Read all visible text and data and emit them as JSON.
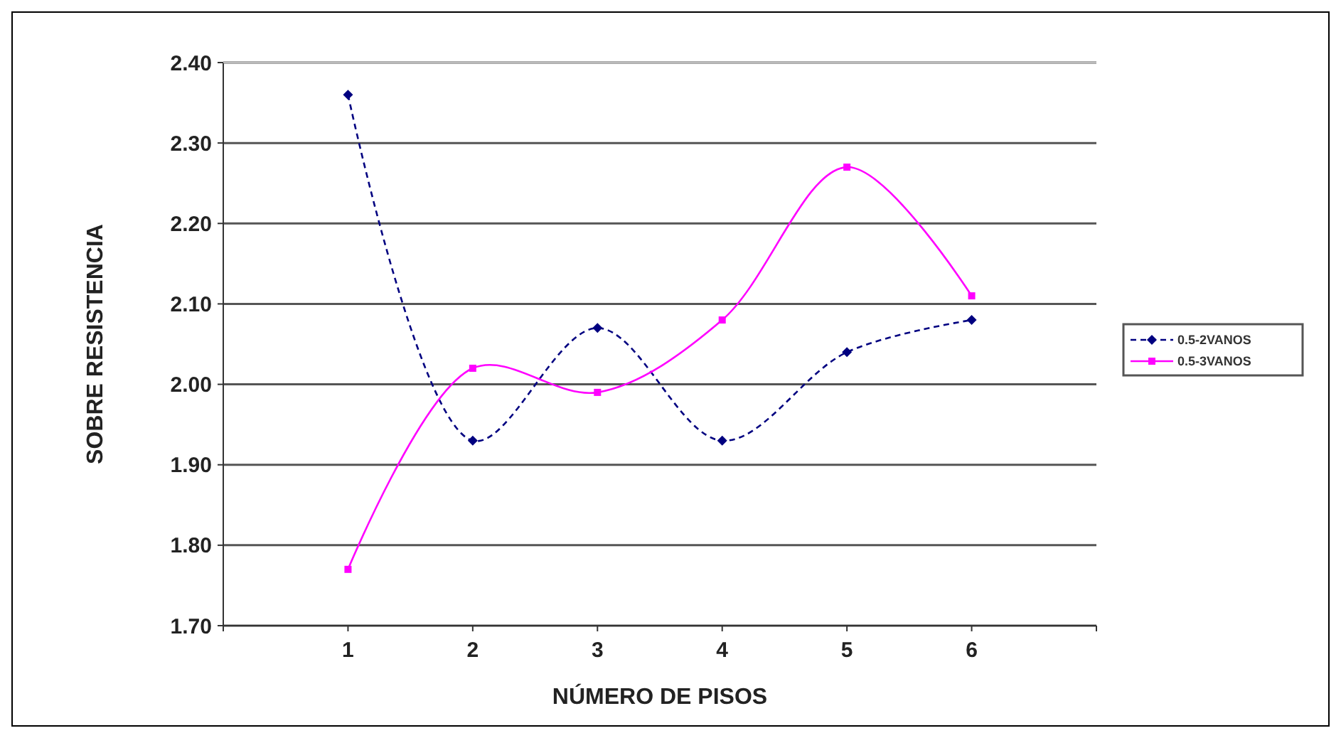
{
  "chart_data": {
    "type": "line",
    "xlabel": "NÚMERO DE PISOS",
    "ylabel": "SOBRE RESISTENCIA",
    "x": [
      1,
      2,
      3,
      4,
      5,
      6
    ],
    "xlim": [
      0,
      7
    ],
    "xticks": [
      {
        "value": 0,
        "label": null
      },
      1,
      2,
      3,
      4,
      5,
      6,
      {
        "value": 7,
        "label": null
      }
    ],
    "ylim": [
      1.7,
      2.4
    ],
    "yticks": [
      {
        "value": 1.7,
        "label": "1.70"
      },
      {
        "value": 1.8,
        "label": "1.80"
      },
      {
        "value": 1.9,
        "label": "1.90"
      },
      {
        "value": 2.0,
        "label": "2.00"
      },
      {
        "value": 2.1,
        "label": "2.10"
      },
      {
        "value": 2.2,
        "label": "2.20"
      },
      {
        "value": 2.3,
        "label": "2.30"
      },
      {
        "value": 2.4,
        "label": "2.40"
      }
    ],
    "grid": "y",
    "legend": "right",
    "series": [
      {
        "name": "0.5-2VANOS",
        "color": "#000080",
        "line_style": "dashed",
        "marker": "diamond",
        "values": [
          2.36,
          1.93,
          2.07,
          1.93,
          2.04,
          2.08
        ]
      },
      {
        "name": "0.5-3VANOS",
        "color": "#ff00ff",
        "line_style": "solid",
        "marker": "square",
        "values": [
          1.77,
          2.02,
          1.99,
          2.08,
          2.27,
          2.11
        ]
      }
    ]
  }
}
